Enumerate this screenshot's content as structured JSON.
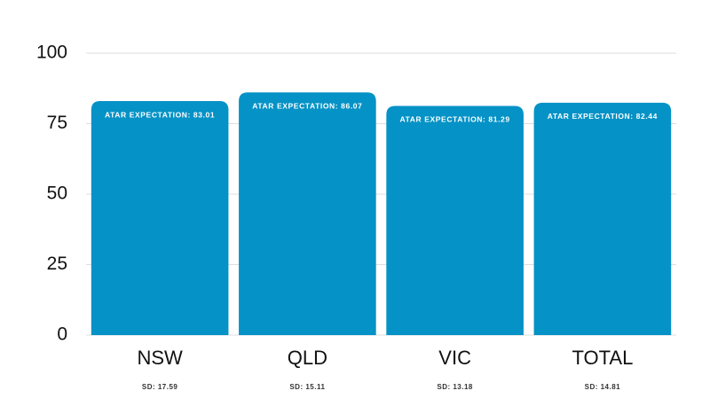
{
  "chart_data": {
    "type": "bar",
    "categories": [
      "NSW",
      "QLD",
      "VIC",
      "TOTAL"
    ],
    "values": [
      83.01,
      86.07,
      81.29,
      82.44
    ],
    "value_labels": [
      "ATAR EXPECTATION: 83.01",
      "ATAR EXPECTATION: 86.07",
      "ATAR EXPECTATION: 81.29",
      "ATAR EXPECTATION: 82.44"
    ],
    "sd_labels": [
      "SD: 17.59",
      "SD: 15.11",
      "SD: 13.18",
      "SD: 14.81"
    ],
    "color": "#0592c6",
    "ylim": [
      0,
      100
    ],
    "yticks": [
      0,
      25,
      50,
      75,
      100
    ],
    "grid": true
  }
}
